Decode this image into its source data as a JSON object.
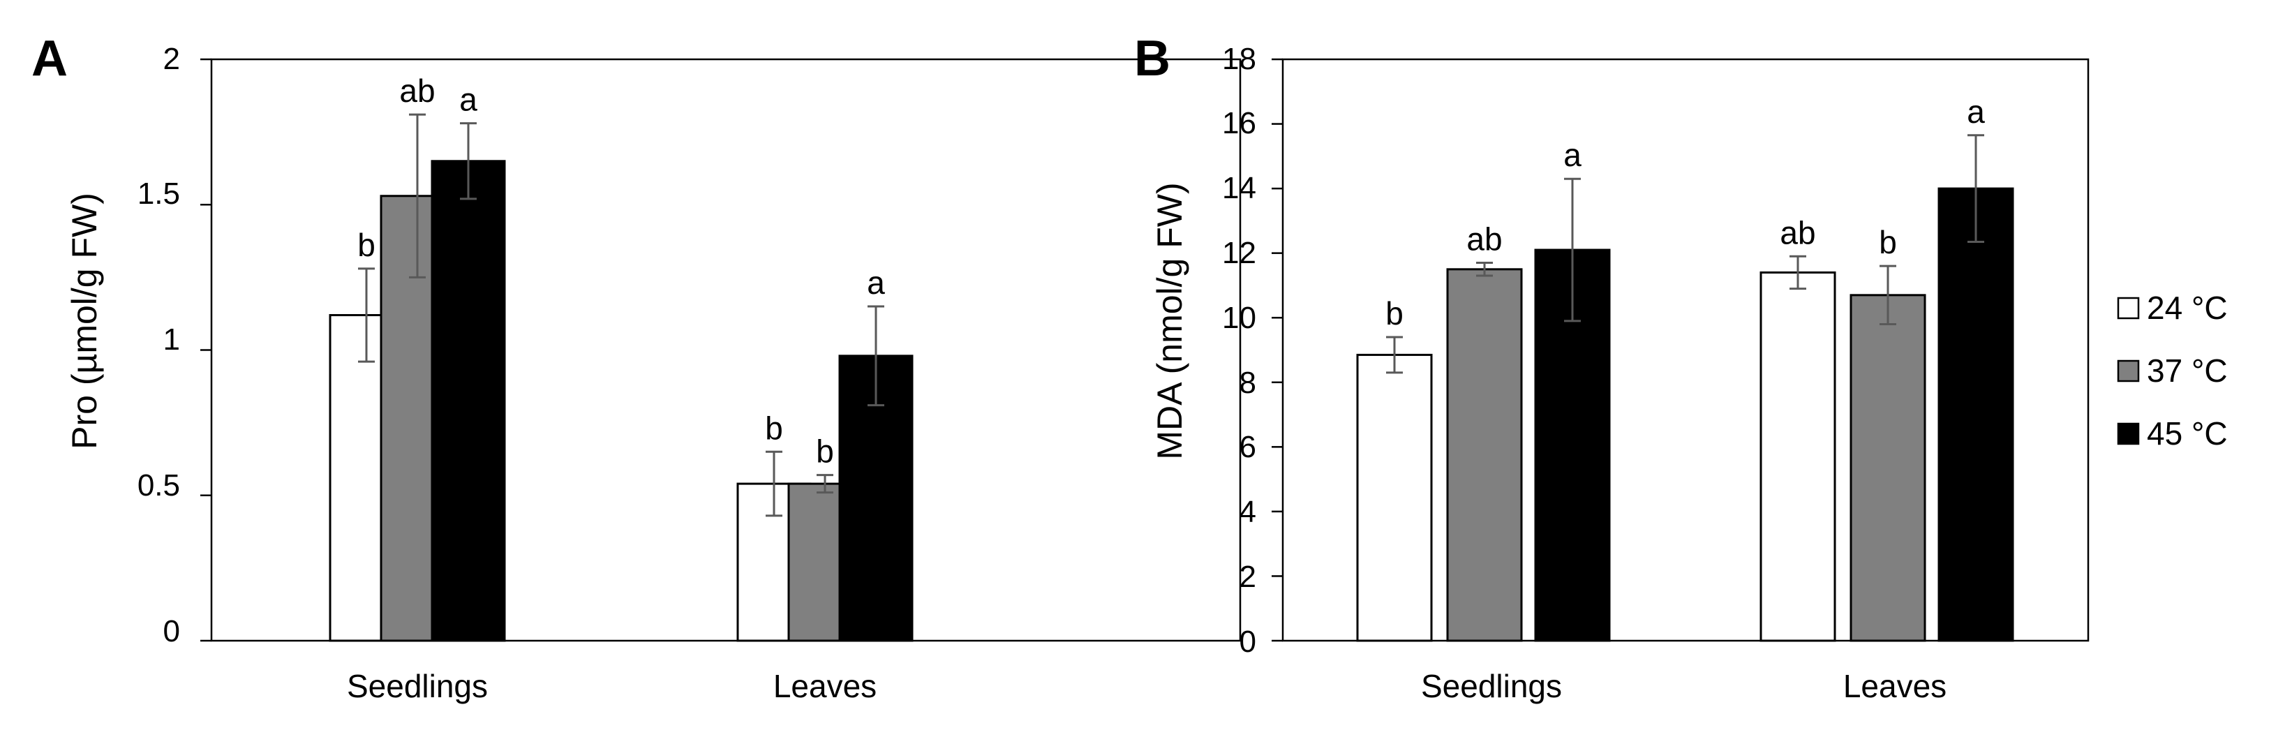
{
  "legend": [
    {
      "label": "24 °C",
      "color": "#ffffff"
    },
    {
      "label": "37 °C",
      "color": "#808080"
    },
    {
      "label": "45 °C",
      "color": "#000000"
    }
  ],
  "chart_data": [
    {
      "panel": "A",
      "type": "bar",
      "title": "",
      "xlabel": "",
      "ylabel": "Pro (µmol/g FW)",
      "ylim": [
        0,
        2
      ],
      "yticks": [
        "0",
        "0.5",
        "1",
        "1.5",
        "2"
      ],
      "ytick_values": [
        0,
        0.5,
        1,
        1.5,
        2
      ],
      "grid": false,
      "categories": [
        "Seedlings",
        "Leaves"
      ],
      "series": [
        {
          "name": "24 °C",
          "color": "#ffffff",
          "values": [
            1.12,
            0.54
          ],
          "errors": [
            0.16,
            0.11
          ],
          "letters": [
            "b",
            "b"
          ]
        },
        {
          "name": "37 °C",
          "color": "#808080",
          "values": [
            1.53,
            0.54
          ],
          "errors": [
            0.28,
            0.03
          ],
          "letters": [
            "ab",
            "b"
          ]
        },
        {
          "name": "45 °C",
          "color": "#000000",
          "values": [
            1.65,
            0.98
          ],
          "errors": [
            0.13,
            0.17
          ],
          "letters": [
            "a",
            "a"
          ]
        }
      ]
    },
    {
      "panel": "B",
      "type": "bar",
      "title": "",
      "xlabel": "",
      "ylabel": "MDA (nmol/g FW)",
      "ylim": [
        0,
        18
      ],
      "yticks": [
        "0",
        "2",
        "4",
        "6",
        "8",
        "10",
        "12",
        "14",
        "16",
        "18"
      ],
      "ytick_values": [
        0,
        2,
        4,
        6,
        8,
        10,
        12,
        14,
        16,
        18
      ],
      "grid": false,
      "categories": [
        "Seedlings",
        "Leaves"
      ],
      "series": [
        {
          "name": "24 °C",
          "color": "#ffffff",
          "values": [
            8.85,
            11.4
          ],
          "errors": [
            0.55,
            0.5
          ],
          "letters": [
            "b",
            "ab"
          ]
        },
        {
          "name": "37 °C",
          "color": "#808080",
          "values": [
            11.5,
            10.7
          ],
          "errors": [
            0.2,
            0.9
          ],
          "letters": [
            "ab",
            "b"
          ]
        },
        {
          "name": "45 °C",
          "color": "#000000",
          "values": [
            12.1,
            14.0
          ],
          "errors": [
            2.2,
            1.65
          ],
          "letters": [
            "a",
            "a"
          ]
        }
      ]
    }
  ]
}
